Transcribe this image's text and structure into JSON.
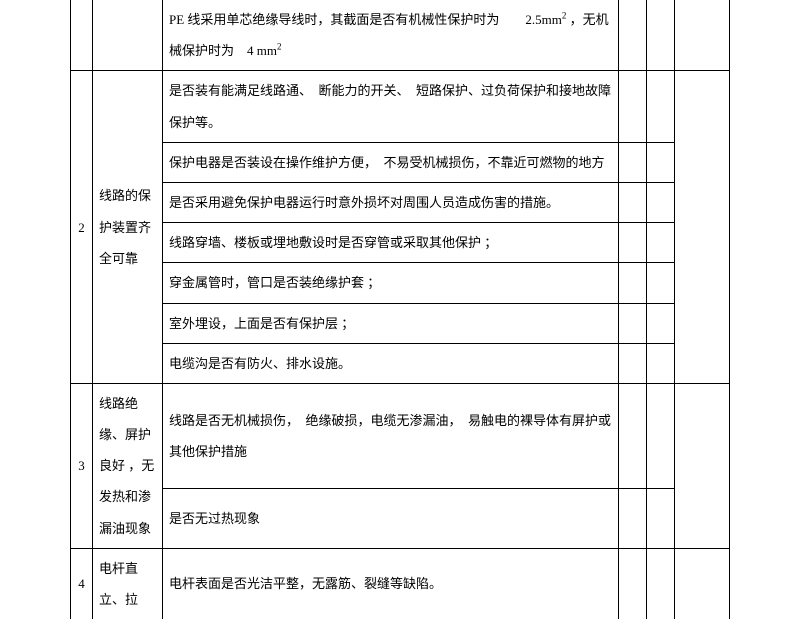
{
  "rows": [
    {
      "num": "",
      "item": "",
      "desc_parts": [
        "PE 线采用单芯绝缘导线时，其截面是否有机械性保护时为　　2.5mm",
        "2",
        " ，无机械保护时为　4 mm",
        "2"
      ]
    },
    {
      "num": "2",
      "item": "线路的保护装置齐全可靠",
      "subrows": [
        "是否装有能满足线路通、　断能力的开关、　短路保护、过负荷保护和接地故障保护等。",
        "保护电器是否装设在操作维护方便，　不易受机械损伤，不靠近可燃物的地方",
        "是否采用避免保护电器运行时意外损坏对周围人员造成伤害的措施。",
        "线路穿墙、楼板或埋地敷设时是否穿管或采取其他保护 ；",
        "穿金属管时，管口是否装绝缘护套 ；",
        "室外埋设，上面是否有保护层 ；",
        "电缆沟是否有防火、排水设施。"
      ]
    },
    {
      "num": "3",
      "item": "线路绝缘、屏护良好 ，无发热和渗漏油现象",
      "subrows": [
        "线路是否无机械损伤，　绝缘破损，电缆无渗漏油，　易触电的裸导体有屏护或其他保护措施",
        "是否无过热现象"
      ]
    },
    {
      "num": "4",
      "item": "电杆直立、拉",
      "subrows": [
        "电杆表面是否光洁平整，无露筋、裂缝等缺陷。"
      ]
    }
  ]
}
